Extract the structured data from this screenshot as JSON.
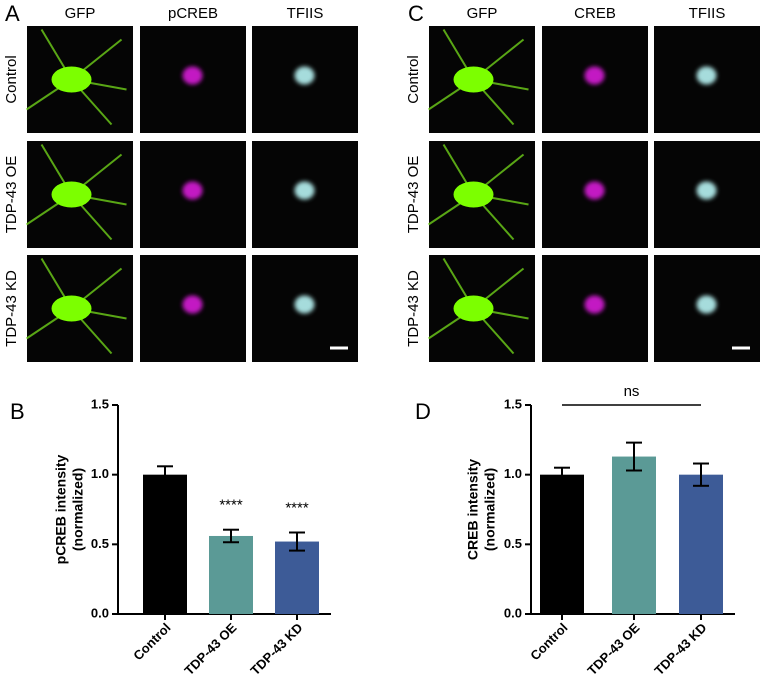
{
  "image_panels": [
    {
      "label": "A",
      "columns": [
        "GFP",
        "pCREB",
        "TFIIS"
      ],
      "rows": [
        "Control",
        "TDP-43 OE",
        "TDP-43 KD"
      ]
    },
    {
      "label": "C",
      "columns": [
        "GFP",
        "CREB",
        "TFIIS"
      ],
      "rows": [
        "Control",
        "TDP-43 OE",
        "TDP-43 KD"
      ]
    }
  ],
  "chart_data": [
    {
      "type": "bar",
      "panel": "B",
      "ylabel": [
        "pCREB intensity",
        "(normalized)"
      ],
      "categories": [
        "Control",
        "TDP-43 OE",
        "TDP-43 KD"
      ],
      "values": [
        1.0,
        0.56,
        0.52
      ],
      "errors": [
        0.06,
        0.045,
        0.065
      ],
      "colors": [
        "#000000",
        "#5b9a96",
        "#3d5b97"
      ],
      "significance": [
        null,
        "****",
        "****"
      ],
      "ylim": [
        0,
        1.5
      ],
      "yticks": [
        {
          "value": 0,
          "label": "0.0"
        },
        {
          "value": 0.5,
          "label": "0.5"
        },
        {
          "value": 1,
          "label": "1.0"
        },
        {
          "value": 1.5,
          "label": "1.5"
        }
      ]
    },
    {
      "type": "bar",
      "panel": "D",
      "ylabel": [
        "CREB intensity",
        "(normalized)"
      ],
      "categories": [
        "Control",
        "TDP-43 OE",
        "TDP-43 KD"
      ],
      "values": [
        1.0,
        1.13,
        1.0
      ],
      "errors": [
        0.05,
        0.1,
        0.08
      ],
      "colors": [
        "#000000",
        "#5b9a96",
        "#3d5b97"
      ],
      "comparison": "ns",
      "ylim": [
        0,
        1.5
      ],
      "yticks": [
        {
          "value": 0,
          "label": "0.0"
        },
        {
          "value": 0.5,
          "label": "0.5"
        },
        {
          "value": 1,
          "label": "1.0"
        },
        {
          "value": 1.5,
          "label": "1.5"
        }
      ]
    }
  ]
}
